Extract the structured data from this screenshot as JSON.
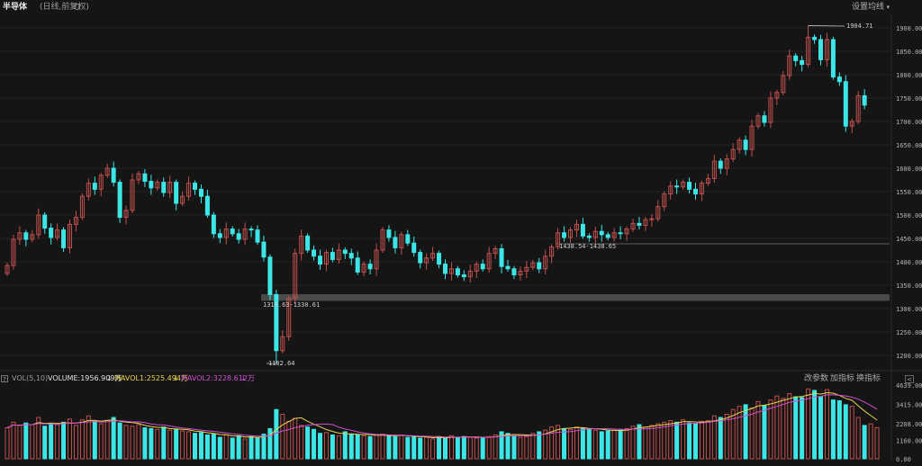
{
  "header": {
    "title": "半导体",
    "subtitle": "(日线,前复权)",
    "settings_label": "设置均线",
    "settings_caret": "▾"
  },
  "colors": {
    "up": "#c0504d",
    "down": "#3de6e6",
    "ma1": "#e8d44d",
    "ma2": "#d24fd2",
    "background": "#151515"
  },
  "icons": {
    "settings": "gear-icon",
    "help": "question-icon",
    "collapse": "chevron-left-icon"
  },
  "price_axis": {
    "ticks": [
      "1900.00",
      "1850.00",
      "1800.00",
      "1750.00",
      "1700.00",
      "1650.00",
      "1600.00",
      "1550.00",
      "1500.00",
      "1450.00",
      "1400.00",
      "1350.00",
      "1300.00",
      "1250.00",
      "1200.00"
    ]
  },
  "annotations": {
    "high_label": "1904.71",
    "low_label": "1182.64",
    "gap1_label": "1316.63-1330.61",
    "gap2_label": "1438.54-1438.65"
  },
  "volume_panel": {
    "help_label": "?",
    "indicator": "VOL(5,10)",
    "volume_text": "VOLUME:1956.909万",
    "arrow_down": "↓",
    "mavol1_text": "MAVOL1:2525.494万",
    "mavol2_text": "MAVOL2:3228.612万",
    "buttons": {
      "change_params": "改参数",
      "add_indicator": "加指标",
      "switch_indicator": "换指标"
    },
    "collapse_label": "<",
    "ticks": [
      "4639.00",
      "3415.00",
      "2208.00",
      "1160.00",
      "0.00"
    ]
  },
  "chart_data": {
    "type": "candlestick",
    "price_axis_range": [
      1180,
      1920
    ],
    "volume_axis_range": [
      0,
      4639
    ],
    "high": 1904.71,
    "low": 1182.64,
    "gaps": [
      [
        1316.63,
        1330.61
      ],
      [
        1438.54,
        1438.65
      ]
    ],
    "candles": [
      [
        1375,
        1392
      ],
      [
        1392,
        1448
      ],
      [
        1448,
        1462
      ],
      [
        1462,
        1448
      ],
      [
        1448,
        1458
      ],
      [
        1458,
        1500
      ],
      [
        1500,
        1472
      ],
      [
        1472,
        1452
      ],
      [
        1452,
        1468
      ],
      [
        1468,
        1430
      ],
      [
        1430,
        1480
      ],
      [
        1480,
        1495
      ],
      [
        1495,
        1540
      ],
      [
        1540,
        1568
      ],
      [
        1568,
        1555
      ],
      [
        1555,
        1585
      ],
      [
        1585,
        1600
      ],
      [
        1600,
        1570
      ],
      [
        1570,
        1495
      ],
      [
        1495,
        1510
      ],
      [
        1510,
        1575
      ],
      [
        1575,
        1588
      ],
      [
        1588,
        1572
      ],
      [
        1572,
        1558
      ],
      [
        1558,
        1570
      ],
      [
        1570,
        1548
      ],
      [
        1548,
        1570
      ],
      [
        1570,
        1525
      ],
      [
        1525,
        1540
      ],
      [
        1540,
        1568
      ],
      [
        1568,
        1555
      ],
      [
        1555,
        1540
      ],
      [
        1540,
        1500
      ],
      [
        1500,
        1460
      ],
      [
        1460,
        1452
      ],
      [
        1452,
        1470
      ],
      [
        1470,
        1460
      ],
      [
        1460,
        1448
      ],
      [
        1448,
        1470
      ],
      [
        1470,
        1468
      ],
      [
        1468,
        1442
      ],
      [
        1442,
        1410
      ],
      [
        1410,
        1330
      ],
      [
        1330,
        1210
      ],
      [
        1210,
        1240
      ],
      [
        1240,
        1322
      ],
      [
        1322,
        1418
      ],
      [
        1418,
        1455
      ],
      [
        1455,
        1425
      ],
      [
        1425,
        1412
      ],
      [
        1412,
        1395
      ],
      [
        1395,
        1420
      ],
      [
        1420,
        1405
      ],
      [
        1405,
        1425
      ],
      [
        1425,
        1418
      ],
      [
        1418,
        1408
      ],
      [
        1408,
        1378
      ],
      [
        1378,
        1395
      ],
      [
        1395,
        1385
      ],
      [
        1385,
        1425
      ],
      [
        1425,
        1468
      ],
      [
        1468,
        1452
      ],
      [
        1452,
        1430
      ],
      [
        1430,
        1458
      ],
      [
        1458,
        1440
      ],
      [
        1440,
        1420
      ],
      [
        1420,
        1398
      ],
      [
        1398,
        1408
      ],
      [
        1408,
        1418
      ],
      [
        1418,
        1395
      ],
      [
        1395,
        1375
      ],
      [
        1375,
        1385
      ],
      [
        1385,
        1372
      ],
      [
        1372,
        1368
      ],
      [
        1368,
        1380
      ],
      [
        1380,
        1395
      ],
      [
        1395,
        1385
      ],
      [
        1385,
        1418
      ],
      [
        1418,
        1428
      ],
      [
        1428,
        1390
      ],
      [
        1390,
        1385
      ],
      [
        1385,
        1372
      ],
      [
        1372,
        1380
      ],
      [
        1380,
        1388
      ],
      [
        1388,
        1398
      ],
      [
        1398,
        1385
      ],
      [
        1385,
        1412
      ],
      [
        1412,
        1432
      ],
      [
        1432,
        1462
      ],
      [
        1462,
        1452
      ],
      [
        1452,
        1468
      ],
      [
        1468,
        1480
      ],
      [
        1480,
        1455
      ],
      [
        1455,
        1452
      ],
      [
        1452,
        1465
      ],
      [
        1465,
        1458
      ],
      [
        1458,
        1452
      ],
      [
        1452,
        1462
      ],
      [
        1462,
        1460
      ],
      [
        1460,
        1470
      ],
      [
        1470,
        1482
      ],
      [
        1482,
        1478
      ],
      [
        1478,
        1490
      ],
      [
        1490,
        1492
      ],
      [
        1492,
        1518
      ],
      [
        1518,
        1545
      ],
      [
        1545,
        1562
      ],
      [
        1562,
        1560
      ],
      [
        1560,
        1570
      ],
      [
        1570,
        1555
      ],
      [
        1555,
        1545
      ],
      [
        1545,
        1568
      ],
      [
        1568,
        1578
      ],
      [
        1578,
        1615
      ],
      [
        1615,
        1600
      ],
      [
        1600,
        1620
      ],
      [
        1620,
        1640
      ],
      [
        1640,
        1660
      ],
      [
        1660,
        1640
      ],
      [
        1640,
        1690
      ],
      [
        1690,
        1712
      ],
      [
        1712,
        1698
      ],
      [
        1698,
        1750
      ],
      [
        1750,
        1762
      ],
      [
        1762,
        1798
      ],
      [
        1798,
        1840
      ],
      [
        1840,
        1830
      ],
      [
        1830,
        1822
      ],
      [
        1822,
        1880
      ],
      [
        1880,
        1875
      ],
      [
        1875,
        1832
      ],
      [
        1832,
        1875
      ],
      [
        1875,
        1795
      ],
      [
        1795,
        1785
      ],
      [
        1785,
        1690
      ],
      [
        1690,
        1700
      ],
      [
        1700,
        1755
      ],
      [
        1755,
        1735
      ]
    ],
    "volumes": [
      1950,
      2300,
      2100,
      2250,
      2150,
      2600,
      2050,
      2200,
      2150,
      2300,
      2500,
      2100,
      2450,
      2700,
      2350,
      2200,
      2400,
      2600,
      2250,
      2100,
      2050,
      2150,
      1950,
      1900,
      1850,
      2000,
      1800,
      1850,
      1750,
      1700,
      1600,
      1650,
      1500,
      1550,
      1350,
      1500,
      1300,
      1450,
      1250,
      1400,
      1300,
      1550,
      1900,
      3100,
      2800,
      2350,
      2550,
      2100,
      2000,
      1850,
      1600,
      1650,
      1500,
      1450,
      1700,
      1550,
      1500,
      1450,
      1400,
      1500,
      1550,
      1450,
      1400,
      1500,
      1350,
      1400,
      1300,
      1350,
      1250,
      1400,
      1300,
      1450,
      1350,
      1400,
      1350,
      1300,
      1350,
      1400,
      1500,
      1700,
      1600,
      1450,
      1350,
      1400,
      1600,
      1700,
      1800,
      2000,
      2100,
      1900,
      1850,
      2000,
      1950,
      1850,
      1800,
      1700,
      1750,
      1800,
      1850,
      1900,
      2050,
      2150,
      2000,
      2100,
      2200,
      2300,
      2400,
      2300,
      2450,
      2250,
      2200,
      2350,
      2400,
      2700,
      2600,
      2800,
      3100,
      3300,
      3400,
      3200,
      3600,
      3350,
      3700,
      3950,
      3800,
      4100,
      3900,
      3850,
      4400,
      4300,
      3900,
      4350,
      3700,
      3650,
      3400,
      3300,
      2600,
      2100,
      2200,
      1956.909
    ]
  }
}
